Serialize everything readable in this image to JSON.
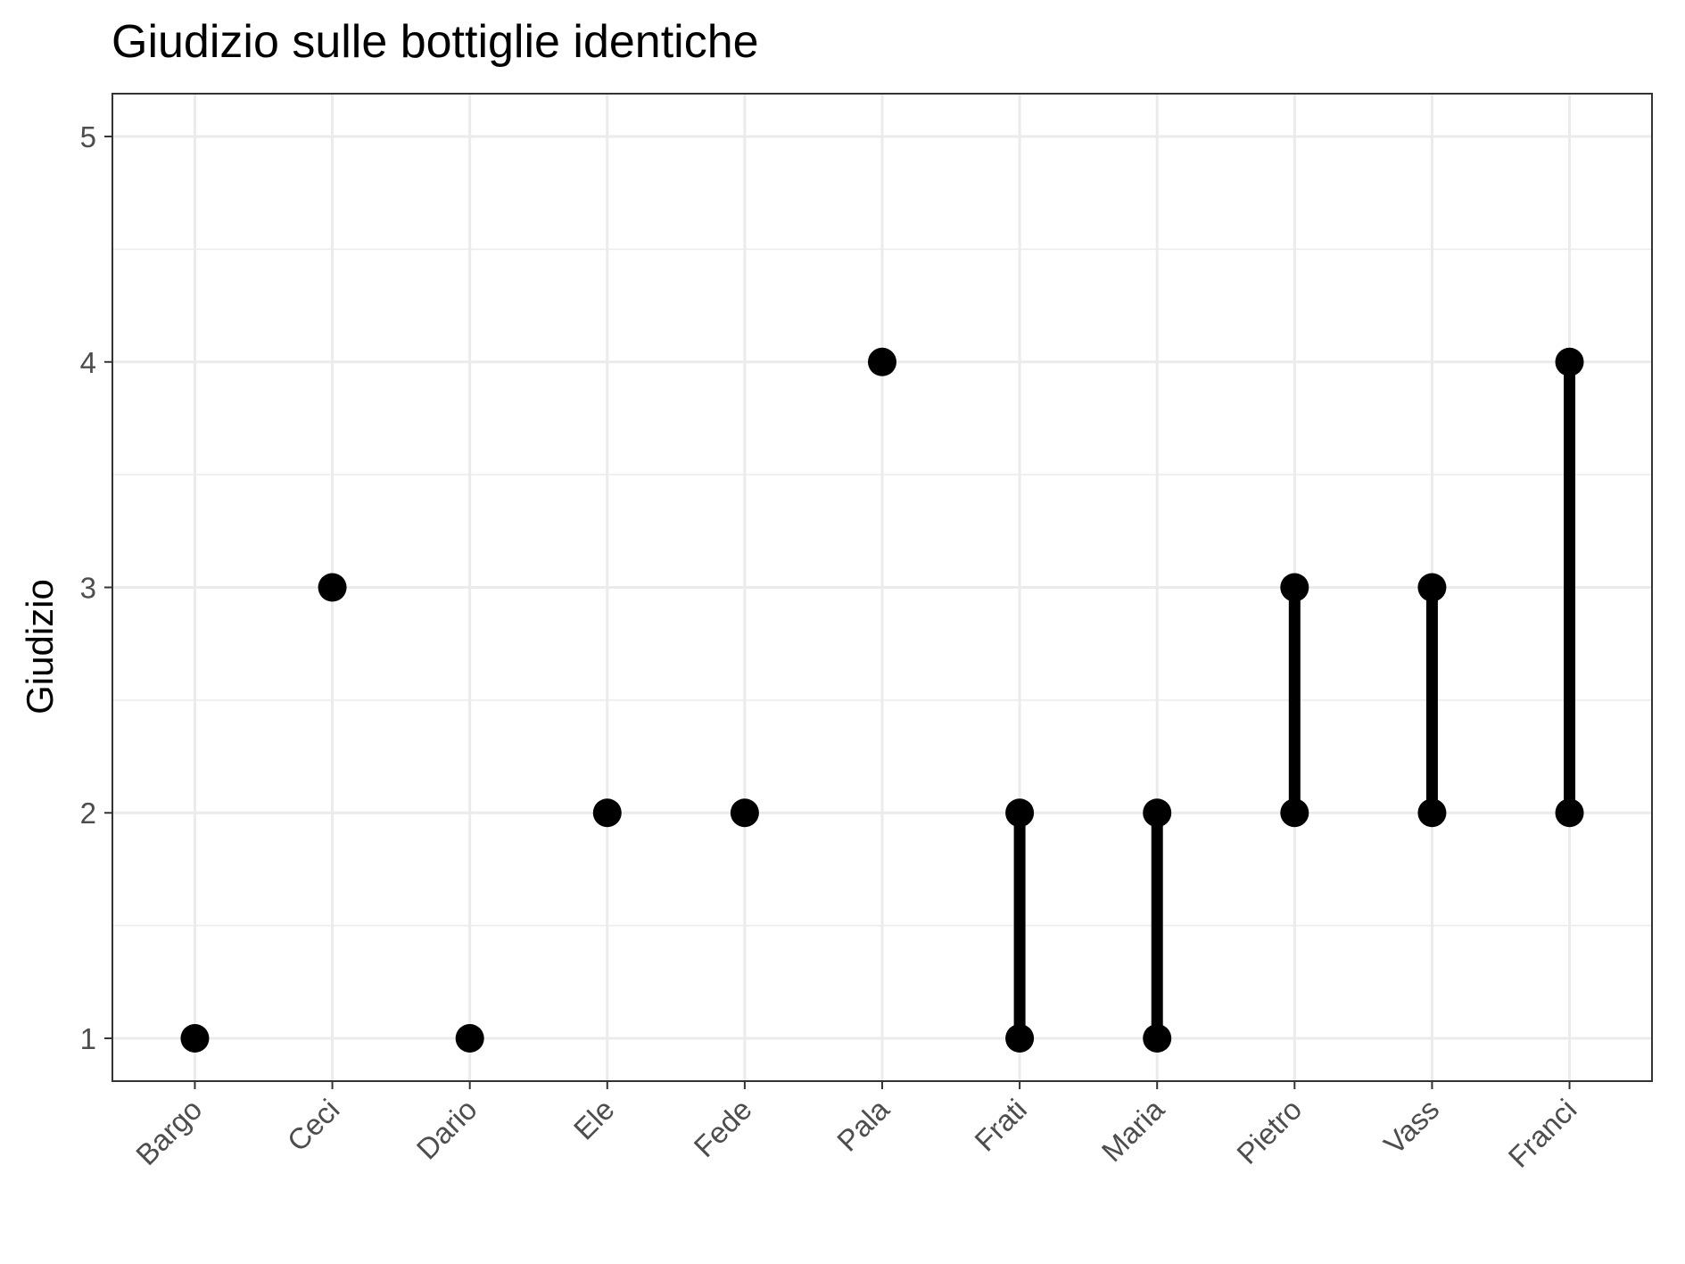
{
  "chart_data": {
    "type": "scatter",
    "subtype": "dumbbell",
    "title": "Giudizio sulle bottiglie identiche",
    "xlabel": "",
    "ylabel": "Giudizio",
    "categories": [
      "Bargo",
      "Ceci",
      "Dario",
      "Ele",
      "Fede",
      "Pala",
      "Frati",
      "Maria",
      "Pietro",
      "Vass",
      "Franci"
    ],
    "points": [
      {
        "category": "Bargo",
        "min": 1,
        "max": 1
      },
      {
        "category": "Ceci",
        "min": 3,
        "max": 3
      },
      {
        "category": "Dario",
        "min": 1,
        "max": 1
      },
      {
        "category": "Ele",
        "min": 2,
        "max": 2
      },
      {
        "category": "Fede",
        "min": 2,
        "max": 2
      },
      {
        "category": "Pala",
        "min": 4,
        "max": 4
      },
      {
        "category": "Frati",
        "min": 1,
        "max": 2
      },
      {
        "category": "Maria",
        "min": 1,
        "max": 2
      },
      {
        "category": "Pietro",
        "min": 2,
        "max": 3
      },
      {
        "category": "Vass",
        "min": 2,
        "max": 3
      },
      {
        "category": "Franci",
        "min": 2,
        "max": 4
      }
    ],
    "ylim": [
      0.81,
      5.19
    ],
    "yticks": [
      "1",
      "2",
      "3",
      "4",
      "5"
    ],
    "grid": true,
    "colors": {
      "mark": "#000000",
      "grid": "#ebebeb",
      "panel_border": "#333333",
      "tick_label": "#4d4d4d",
      "background": "#ffffff"
    }
  }
}
